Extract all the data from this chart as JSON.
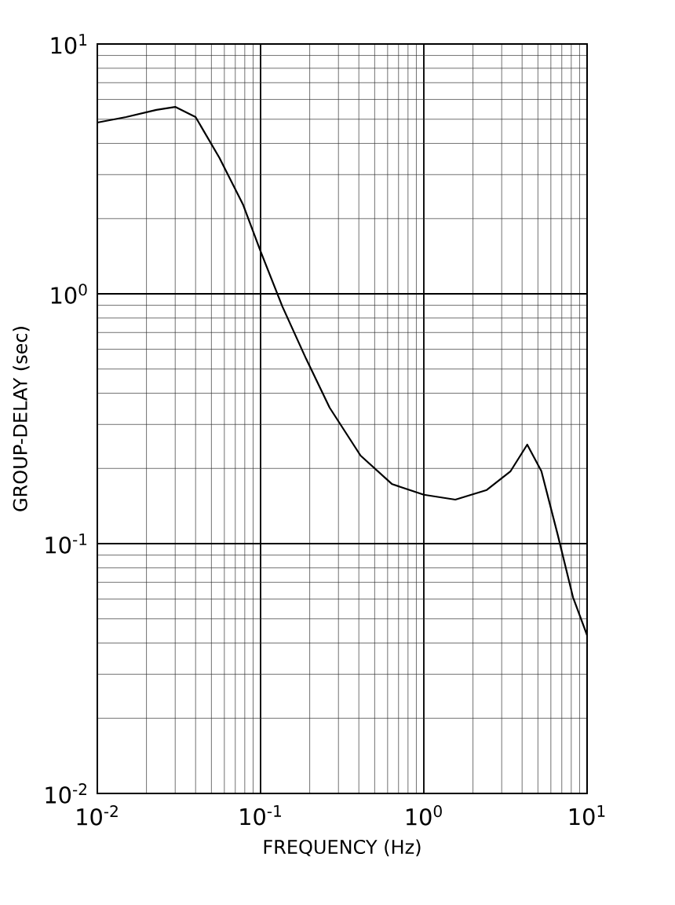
{
  "chart_data": {
    "type": "line",
    "xlabel": "FREQUENCY (Hz)",
    "ylabel": "GROUP-DELAY (sec)",
    "log": "xy",
    "grid": true,
    "marker": "none",
    "line_style": "solid",
    "xlim": [
      0.01,
      10
    ],
    "ylim": [
      0.01,
      10
    ],
    "xticks": [
      {
        "value": 0.01,
        "label": "10$^{-2}$"
      },
      {
        "value": 0.1,
        "label": "10$^{-1}$"
      },
      {
        "value": 1,
        "label": "10$^{0}$"
      },
      {
        "value": 10,
        "label": "10$^{1}$"
      }
    ],
    "yticks": [
      {
        "value": 0.01,
        "label": "10$^{-2}$"
      },
      {
        "value": 0.1,
        "label": "10$^{-1}$"
      },
      {
        "value": 1,
        "label": "10$^{0}$"
      },
      {
        "value": 10,
        "label": "10$^{1}$"
      }
    ],
    "series": [
      {
        "color": "#000000",
        "x": [
          0.01,
          0.015,
          0.023,
          0.03,
          0.04,
          0.056,
          0.078,
          0.1,
          0.136,
          0.19,
          0.265,
          0.41,
          0.64,
          1,
          1.56,
          2.43,
          3.4,
          4.3,
          5.25,
          6.6,
          8.2,
          10
        ],
        "values": [
          4.85,
          5.1,
          5.45,
          5.6,
          5.1,
          3.5,
          2.28,
          1.48,
          0.89,
          0.55,
          0.35,
          0.225,
          0.173,
          0.157,
          0.15,
          0.164,
          0.195,
          0.249,
          0.195,
          0.109,
          0.061,
          0.043
        ]
      }
    ]
  }
}
